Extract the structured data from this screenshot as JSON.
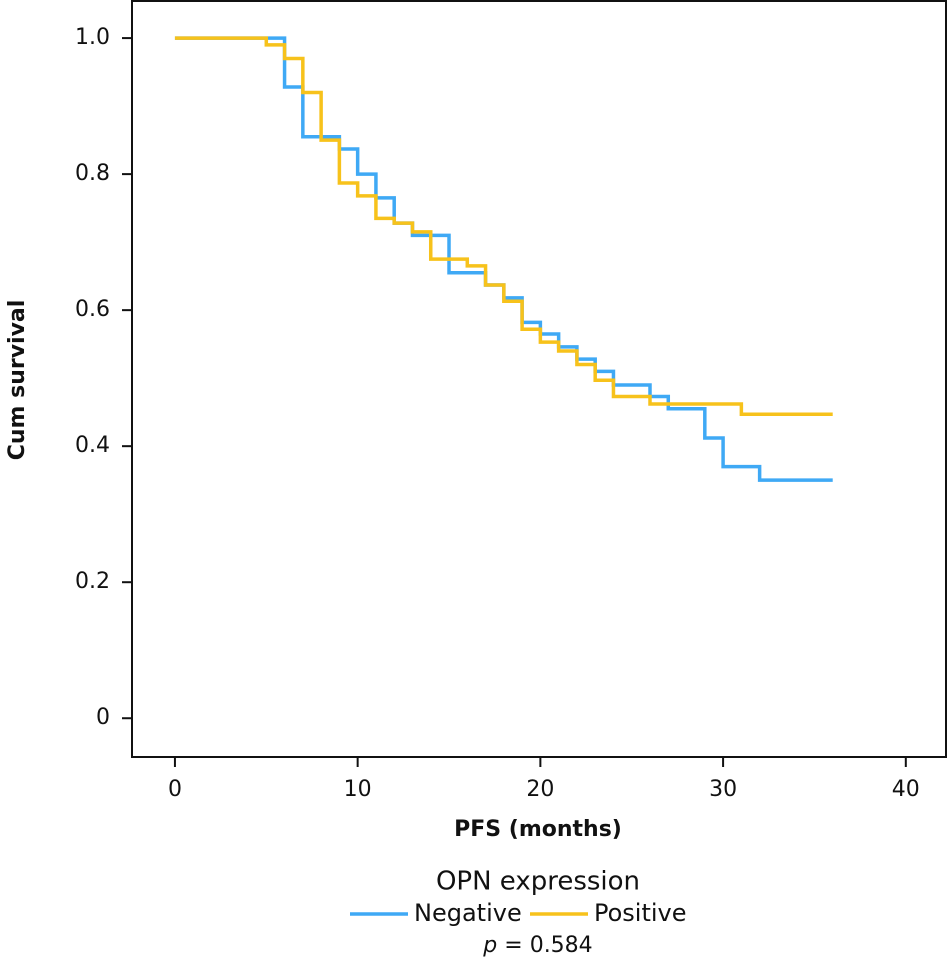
{
  "chart_data": {
    "type": "step",
    "xlabel": "PFS (months)",
    "ylabel": "Cum survival",
    "legend_title": "OPN expression",
    "annotation": {
      "italic": "p",
      "text": "= 0.584"
    },
    "xlim": [
      -2.35,
      42.2
    ],
    "xticks": [
      0,
      10,
      20,
      30,
      40
    ],
    "ylim": [
      -0.057,
      1.056
    ],
    "yticks": [
      0,
      0.2,
      0.4,
      0.6,
      0.8,
      {
        "value": 1,
        "label": "1.0"
      }
    ],
    "series": [
      {
        "name": "Negative",
        "color": "#3fa9f5",
        "x": [
          0,
          6,
          7,
          9,
          10,
          11,
          12,
          13,
          15,
          17,
          18,
          19,
          20,
          21,
          22,
          23,
          24,
          26,
          27,
          29,
          30,
          32,
          36
        ],
        "values": [
          1.0,
          0.928,
          0.855,
          0.837,
          0.8,
          0.765,
          0.728,
          0.71,
          0.655,
          0.637,
          0.618,
          0.582,
          0.565,
          0.546,
          0.528,
          0.51,
          0.49,
          0.473,
          0.455,
          0.412,
          0.37,
          0.35,
          0.35
        ]
      },
      {
        "name": "Positive",
        "color": "#f7c21b",
        "x": [
          0,
          5,
          6,
          7,
          8,
          9,
          10,
          11,
          12,
          13,
          14,
          16,
          17,
          18,
          19,
          20,
          21,
          22,
          23,
          24,
          26,
          31,
          36
        ],
        "values": [
          1.0,
          0.99,
          0.97,
          0.92,
          0.85,
          0.787,
          0.768,
          0.735,
          0.728,
          0.715,
          0.675,
          0.665,
          0.637,
          0.613,
          0.572,
          0.553,
          0.54,
          0.52,
          0.497,
          0.473,
          0.462,
          0.447,
          0.447
        ]
      }
    ]
  }
}
